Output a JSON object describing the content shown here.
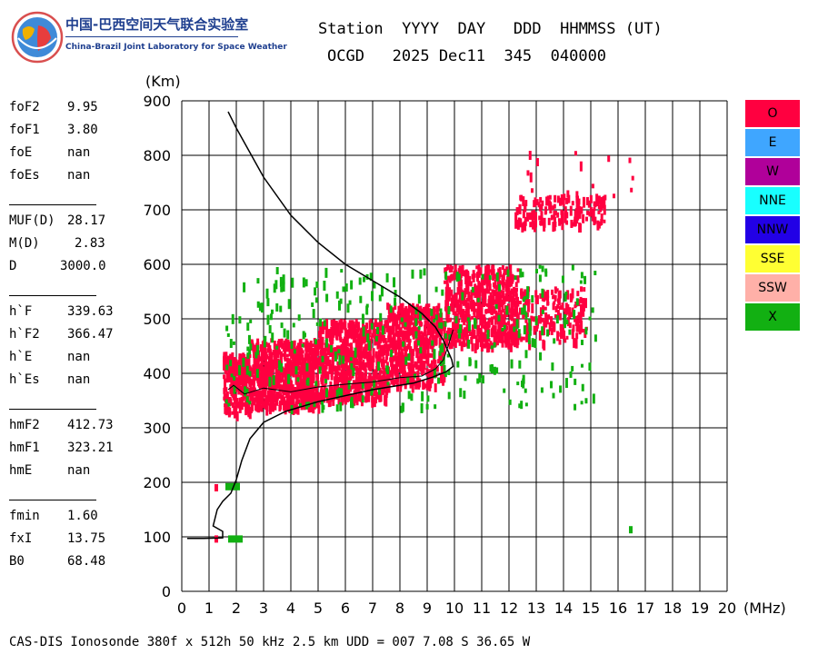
{
  "header": {
    "org_cn": "中国-巴西空间天气联合实验室",
    "org_en": "China-Brazil Joint Laboratory for Space Weather",
    "labels_line": "Station  YYYY  DAY   DDD  HHMMSS (UT)",
    "values_line": "OCGD   2025 Dec11  345  040000"
  },
  "params": {
    "group1": [
      {
        "name": "foF2",
        "value": "9.95"
      },
      {
        "name": "foF1",
        "value": "3.80"
      },
      {
        "name": "foE",
        "value": "nan"
      },
      {
        "name": "foEs",
        "value": "nan"
      }
    ],
    "group2": [
      {
        "name": "MUF(D)",
        "value": "28.17"
      },
      {
        "name": "M(D)",
        "value": "2.83"
      },
      {
        "name": "D",
        "value": "3000.0"
      }
    ],
    "group3": [
      {
        "name": "h`F",
        "value": "339.63"
      },
      {
        "name": "h`F2",
        "value": "366.47"
      },
      {
        "name": "h`E",
        "value": "nan"
      },
      {
        "name": "h`Es",
        "value": "nan"
      }
    ],
    "group4": [
      {
        "name": "hmF2",
        "value": "412.73"
      },
      {
        "name": "hmF1",
        "value": "323.21"
      },
      {
        "name": "hmE",
        "value": "nan"
      }
    ],
    "group5": [
      {
        "name": "fmin",
        "value": "1.60"
      },
      {
        "name": "fxI",
        "value": "13.75"
      },
      {
        "name": "B0",
        "value": "68.48"
      }
    ]
  },
  "legend": [
    {
      "label": "O",
      "color": "#ff0040"
    },
    {
      "label": "E",
      "color": "#3fa6ff"
    },
    {
      "label": "W",
      "color": "#b0009a"
    },
    {
      "label": "NNE",
      "color": "#18ffff"
    },
    {
      "label": "NNW",
      "color": "#2200e6"
    },
    {
      "label": "SSE",
      "color": "#ffff33"
    },
    {
      "label": "SSW",
      "color": "#ffb0a8"
    },
    {
      "label": "X",
      "color": "#12b012"
    }
  ],
  "footer": "CAS-DIS Ionosonde 380f x 512h 50 kHz 2.5 km UDD = 007 7.08 S 36.65 W",
  "chart_data": {
    "type": "scatter",
    "xlabel": "(MHz)",
    "ylabel": "(Km)",
    "xlim": [
      0,
      20
    ],
    "ylim": [
      0,
      900
    ],
    "xticks": [
      0,
      1,
      2,
      3,
      4,
      5,
      6,
      7,
      8,
      9,
      10,
      11,
      12,
      13,
      14,
      15,
      16,
      17,
      18,
      19,
      20
    ],
    "yticks": [
      0,
      100,
      200,
      300,
      400,
      500,
      600,
      700,
      800,
      900
    ],
    "grid": true,
    "legend_position": "right",
    "echo_regions": [
      {
        "mode": "O",
        "x": [
          1.5,
          2.5
        ],
        "y": [
          330,
          440
        ],
        "count": 260
      },
      {
        "mode": "O",
        "x": [
          2.5,
          5.0
        ],
        "y": [
          340,
          465
        ],
        "count": 700
      },
      {
        "mode": "O",
        "x": [
          5.0,
          7.5
        ],
        "y": [
          355,
          500
        ],
        "count": 650
      },
      {
        "mode": "O",
        "x": [
          7.5,
          9.6
        ],
        "y": [
          380,
          530
        ],
        "count": 500
      },
      {
        "mode": "O",
        "x": [
          9.6,
          12.3
        ],
        "y": [
          455,
          600
        ],
        "count": 600
      },
      {
        "mode": "O",
        "x": [
          12.0,
          14.8
        ],
        "y": [
          460,
          560
        ],
        "count": 200
      },
      {
        "mode": "O",
        "x": [
          12.2,
          15.5
        ],
        "y": [
          675,
          730
        ],
        "count": 160
      },
      {
        "mode": "O",
        "x": [
          11.8,
          16.5
        ],
        "y": [
          720,
          810
        ],
        "count": 18
      },
      {
        "mode": "X",
        "x": [
          1.5,
          15.2
        ],
        "y": [
          340,
          600
        ],
        "count": 350
      }
    ],
    "echo_points": [
      {
        "mode": "O",
        "x": 1.2,
        "y": 96
      },
      {
        "mode": "X",
        "x": 1.7,
        "y": 96
      },
      {
        "mode": "O",
        "x": 1.2,
        "y": 190
      },
      {
        "mode": "X",
        "x": 1.6,
        "y": 192
      },
      {
        "mode": "X",
        "x": 16.4,
        "y": 113
      }
    ],
    "profile_curve": [
      [
        1.7,
        880
      ],
      [
        2.0,
        850
      ],
      [
        3.0,
        760
      ],
      [
        4.0,
        690
      ],
      [
        5.0,
        640
      ],
      [
        6.0,
        600
      ],
      [
        7.0,
        570
      ],
      [
        8.0,
        540
      ],
      [
        8.8,
        510
      ],
      [
        9.3,
        485
      ],
      [
        9.6,
        460
      ],
      [
        9.9,
        425
      ],
      [
        9.95,
        412.73
      ],
      [
        9.7,
        403
      ],
      [
        9.2,
        393
      ],
      [
        8.5,
        382
      ],
      [
        7.0,
        370
      ],
      [
        5.0,
        348
      ],
      [
        3.8,
        330
      ],
      [
        3.0,
        310
      ],
      [
        2.5,
        280
      ],
      [
        2.2,
        240
      ],
      [
        2.0,
        205
      ],
      [
        1.8,
        180
      ],
      [
        1.5,
        165
      ],
      [
        1.3,
        150
      ],
      [
        1.15,
        120
      ],
      [
        1.5,
        110
      ],
      [
        1.5,
        98
      ],
      [
        0.8,
        97
      ],
      [
        0.2,
        97
      ]
    ],
    "trace_curve": [
      [
        1.7,
        370
      ],
      [
        1.9,
        378
      ],
      [
        2.3,
        362
      ],
      [
        3.0,
        373
      ],
      [
        4.0,
        366
      ],
      [
        5.0,
        375
      ],
      [
        6.0,
        380
      ],
      [
        7.0,
        384
      ],
      [
        8.0,
        392
      ],
      [
        8.8,
        395
      ],
      [
        9.3,
        408
      ],
      [
        9.6,
        425
      ],
      [
        9.8,
        455
      ],
      [
        9.95,
        480
      ]
    ]
  }
}
